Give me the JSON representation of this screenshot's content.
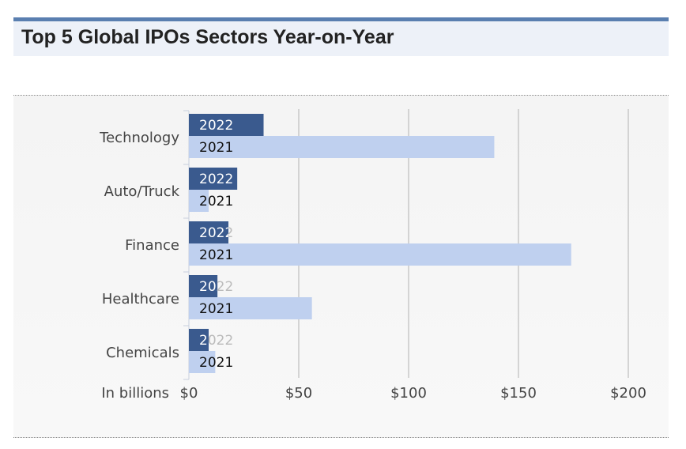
{
  "header": {
    "title": "Top 5 Global IPOs Sectors Year-on-Year"
  },
  "colors": {
    "bar_2022": "#3a5a8e",
    "bar_2021": "#bfd0ef",
    "grid": "#c8c8c8",
    "accent": "#5a7fb0"
  },
  "chart_data": {
    "type": "bar",
    "orientation": "horizontal",
    "title": "Top 5 Global IPOs Sectors Year-on-Year",
    "xlabel": "In billions",
    "categories": [
      "Technology",
      "Auto/Truck",
      "Finance",
      "Healthcare",
      "Chemicals"
    ],
    "series": [
      {
        "name": "2022",
        "values": [
          34,
          22,
          18,
          13,
          9
        ]
      },
      {
        "name": "2021",
        "values": [
          139,
          9,
          174,
          56,
          12
        ]
      }
    ],
    "xlim": [
      0,
      200
    ],
    "ticks": [
      "$0",
      "$50",
      "$100",
      "$150",
      "$200"
    ],
    "tick_values": [
      0,
      50,
      100,
      150,
      200
    ],
    "grid": true
  }
}
